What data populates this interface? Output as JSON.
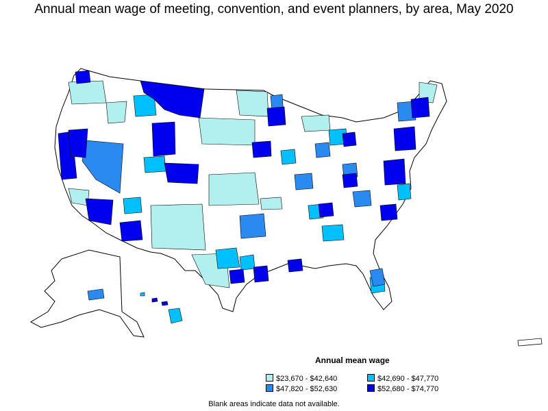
{
  "title": "Annual mean wage of meeting, convention, and event planners, by area, May 2020",
  "legend": {
    "title": "Annual mean wage",
    "items": [
      {
        "label": "$23,670 - $42,640",
        "color": "#b2f0f0"
      },
      {
        "label": "$42,690 - $47,770",
        "color": "#00c0ff"
      },
      {
        "label": "$47,820 - $52,630",
        "color": "#2a8af0"
      },
      {
        "label": "$52,680 - $74,770",
        "color": "#0000ee"
      }
    ]
  },
  "footnote": "Blank areas indicate data not available.",
  "colors": {
    "border": "#000000",
    "blank": "#ffffff"
  }
}
